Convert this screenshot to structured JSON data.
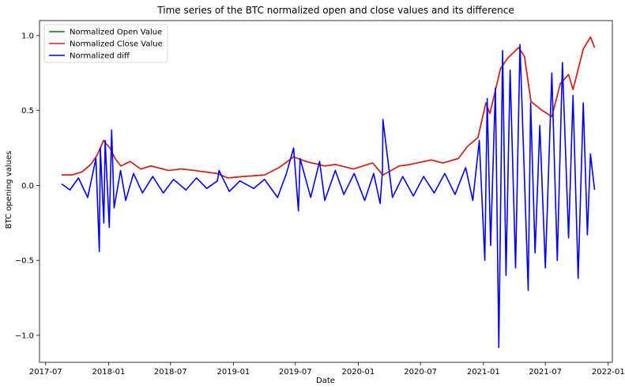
{
  "chart_data": {
    "type": "line",
    "title": "Time series of the BTC normalized open and close values and its difference",
    "xlabel": "Date",
    "ylabel": "BTC opening values",
    "xlim": [
      "2017-06-13",
      "2022-01-13"
    ],
    "ylim": [
      -1.18,
      1.1
    ],
    "x_ticks": [
      {
        "date": "2017-07-01",
        "label": "2017-07"
      },
      {
        "date": "2018-01-01",
        "label": "2018-01"
      },
      {
        "date": "2018-07-01",
        "label": "2018-07"
      },
      {
        "date": "2019-01-01",
        "label": "2019-01"
      },
      {
        "date": "2019-07-01",
        "label": "2019-07"
      },
      {
        "date": "2020-01-01",
        "label": "2020-01"
      },
      {
        "date": "2020-07-01",
        "label": "2020-07"
      },
      {
        "date": "2021-01-01",
        "label": "2021-01"
      },
      {
        "date": "2021-07-01",
        "label": "2021-07"
      },
      {
        "date": "2022-01-01",
        "label": "2022-01"
      }
    ],
    "y_ticks": [
      {
        "value": 1.0,
        "label": "1.0"
      },
      {
        "value": 0.5,
        "label": "0.5"
      },
      {
        "value": 0.0,
        "label": "0.0"
      },
      {
        "value": -0.5,
        "label": "−0.5"
      },
      {
        "value": -1.0,
        "label": "−1.0"
      }
    ],
    "legend_position": "top-left",
    "grid": false,
    "series": [
      {
        "name": "Normalized Open Value",
        "color": "#008000",
        "x": [
          "2017-08-17",
          "2017-09-15",
          "2017-10-15",
          "2017-11-10",
          "2017-11-28",
          "2017-12-10",
          "2017-12-17",
          "2018-01-05",
          "2018-01-20",
          "2018-02-06",
          "2018-03-05",
          "2018-04-05",
          "2018-05-05",
          "2018-06-25",
          "2018-08-01",
          "2018-09-10",
          "2018-11-14",
          "2018-12-15",
          "2019-02-01",
          "2019-04-02",
          "2019-05-15",
          "2019-06-26",
          "2019-08-01",
          "2019-09-25",
          "2019-10-26",
          "2019-12-18",
          "2020-02-12",
          "2020-03-13",
          "2020-04-30",
          "2020-06-01",
          "2020-08-01",
          "2020-09-05",
          "2020-10-20",
          "2020-11-15",
          "2020-12-16",
          "2021-01-08",
          "2021-01-20",
          "2021-02-20",
          "2021-03-13",
          "2021-04-14",
          "2021-05-01",
          "2021-05-20",
          "2021-06-22",
          "2021-07-20",
          "2021-08-14",
          "2021-09-07",
          "2021-09-20",
          "2021-10-20",
          "2021-11-10",
          "2021-11-22"
        ],
        "y": [
          0.07,
          0.07,
          0.09,
          0.14,
          0.2,
          0.26,
          0.3,
          0.25,
          0.18,
          0.13,
          0.16,
          0.11,
          0.13,
          0.1,
          0.11,
          0.1,
          0.08,
          0.05,
          0.06,
          0.07,
          0.12,
          0.19,
          0.16,
          0.13,
          0.14,
          0.11,
          0.15,
          0.07,
          0.13,
          0.14,
          0.17,
          0.15,
          0.18,
          0.26,
          0.32,
          0.55,
          0.48,
          0.78,
          0.85,
          0.92,
          0.86,
          0.56,
          0.5,
          0.46,
          0.68,
          0.74,
          0.64,
          0.91,
          0.99,
          0.92
        ]
      },
      {
        "name": "Normalized Close Value",
        "color": "#e41a1c",
        "x": [
          "2017-08-17",
          "2017-09-15",
          "2017-10-15",
          "2017-11-10",
          "2017-11-28",
          "2017-12-10",
          "2017-12-17",
          "2018-01-05",
          "2018-01-20",
          "2018-02-06",
          "2018-03-05",
          "2018-04-05",
          "2018-05-05",
          "2018-06-25",
          "2018-08-01",
          "2018-09-10",
          "2018-11-14",
          "2018-12-15",
          "2019-02-01",
          "2019-04-02",
          "2019-05-15",
          "2019-06-26",
          "2019-08-01",
          "2019-09-25",
          "2019-10-26",
          "2019-12-18",
          "2020-02-12",
          "2020-03-13",
          "2020-04-30",
          "2020-06-01",
          "2020-08-01",
          "2020-09-05",
          "2020-10-20",
          "2020-11-15",
          "2020-12-16",
          "2021-01-08",
          "2021-01-20",
          "2021-02-20",
          "2021-03-13",
          "2021-04-14",
          "2021-05-01",
          "2021-05-20",
          "2021-06-22",
          "2021-07-20",
          "2021-08-14",
          "2021-09-07",
          "2021-09-20",
          "2021-10-20",
          "2021-11-10",
          "2021-11-22"
        ],
        "y": [
          0.07,
          0.07,
          0.09,
          0.14,
          0.2,
          0.26,
          0.3,
          0.25,
          0.18,
          0.13,
          0.16,
          0.11,
          0.13,
          0.1,
          0.11,
          0.1,
          0.08,
          0.05,
          0.06,
          0.07,
          0.12,
          0.19,
          0.16,
          0.13,
          0.14,
          0.11,
          0.15,
          0.07,
          0.13,
          0.14,
          0.17,
          0.15,
          0.18,
          0.26,
          0.32,
          0.55,
          0.48,
          0.78,
          0.85,
          0.92,
          0.86,
          0.56,
          0.5,
          0.46,
          0.68,
          0.74,
          0.64,
          0.91,
          0.99,
          0.92
        ]
      },
      {
        "name": "Normalized diff",
        "color": "#0000ff",
        "x": [
          "2017-08-17",
          "2017-09-10",
          "2017-10-05",
          "2017-11-01",
          "2017-11-25",
          "2017-12-05",
          "2017-12-08",
          "2017-12-18",
          "2017-12-22",
          "2018-01-03",
          "2018-01-10",
          "2018-01-17",
          "2018-02-05",
          "2018-02-20",
          "2018-03-15",
          "2018-04-10",
          "2018-05-10",
          "2018-06-10",
          "2018-07-10",
          "2018-08-15",
          "2018-09-15",
          "2018-10-15",
          "2018-11-15",
          "2018-11-20",
          "2018-12-20",
          "2019-01-20",
          "2019-03-01",
          "2019-04-02",
          "2019-05-10",
          "2019-06-05",
          "2019-06-26",
          "2019-07-10",
          "2019-07-15",
          "2019-08-15",
          "2019-09-10",
          "2019-09-25",
          "2019-10-26",
          "2019-11-20",
          "2019-12-20",
          "2020-01-20",
          "2020-02-15",
          "2020-03-05",
          "2020-03-12",
          "2020-03-13",
          "2020-04-10",
          "2020-05-10",
          "2020-06-10",
          "2020-07-10",
          "2020-08-10",
          "2020-09-10",
          "2020-10-10",
          "2020-11-10",
          "2020-12-01",
          "2020-12-20",
          "2021-01-05",
          "2021-01-12",
          "2021-01-22",
          "2021-02-05",
          "2021-02-15",
          "2021-02-26",
          "2021-03-08",
          "2021-03-20",
          "2021-04-05",
          "2021-04-18",
          "2021-05-12",
          "2021-05-19",
          "2021-06-01",
          "2021-06-15",
          "2021-07-01",
          "2021-07-20",
          "2021-08-05",
          "2021-08-20",
          "2021-09-07",
          "2021-09-20",
          "2021-10-05",
          "2021-10-20",
          "2021-11-01",
          "2021-11-10",
          "2021-11-22"
        ],
        "y": [
          0.01,
          -0.03,
          0.05,
          -0.08,
          0.18,
          -0.44,
          0.25,
          -0.25,
          0.3,
          -0.28,
          0.37,
          -0.15,
          0.1,
          -0.1,
          0.08,
          -0.05,
          0.06,
          -0.05,
          0.04,
          -0.03,
          0.05,
          -0.02,
          0.03,
          0.1,
          -0.04,
          0.03,
          -0.02,
          0.04,
          -0.08,
          0.08,
          0.25,
          -0.17,
          0.18,
          -0.08,
          0.16,
          -0.1,
          0.1,
          -0.06,
          0.08,
          -0.1,
          0.08,
          -0.12,
          0.1,
          0.44,
          -0.08,
          0.06,
          -0.07,
          0.06,
          -0.05,
          0.08,
          -0.06,
          0.12,
          -0.1,
          0.3,
          -0.5,
          0.58,
          -0.4,
          0.65,
          -1.08,
          0.9,
          -0.6,
          0.77,
          -0.55,
          0.94,
          -0.7,
          0.55,
          -0.45,
          0.4,
          -0.55,
          0.75,
          -0.5,
          0.82,
          -0.35,
          0.6,
          -0.62,
          0.55,
          -0.33,
          0.21,
          -0.03
        ]
      }
    ]
  }
}
